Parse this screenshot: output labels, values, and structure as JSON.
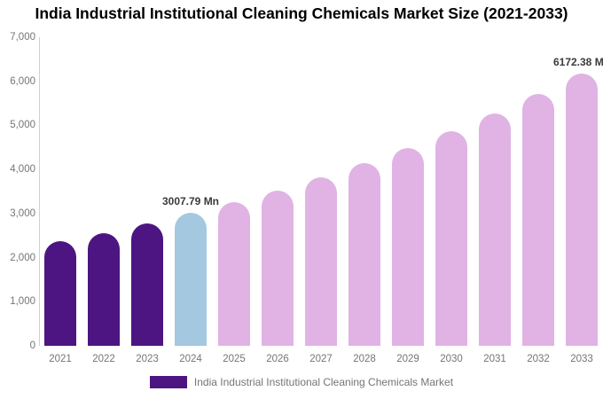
{
  "header": {
    "title": "India Industrial Institutional Cleaning Chemicals Market Size (2021-2033)"
  },
  "chart_data": {
    "type": "bar",
    "title": "India Industrial Institutional Cleaning Chemicals Market Size (2021-2033)",
    "categories": [
      "2021",
      "2022",
      "2023",
      "2024",
      "2025",
      "2026",
      "2027",
      "2028",
      "2029",
      "2030",
      "2031",
      "2032",
      "2033"
    ],
    "values": [
      2366,
      2563,
      2777,
      3007.79,
      3258,
      3530,
      3824,
      4142,
      4487,
      4860,
      5265,
      5703,
      6172.38
    ],
    "unit": "Mn",
    "bar_styles": [
      "historical",
      "historical",
      "historical",
      "current",
      "forecast",
      "forecast",
      "forecast",
      "forecast",
      "forecast",
      "forecast",
      "forecast",
      "forecast",
      "forecast"
    ],
    "colors": {
      "historical": "#4D1581",
      "current": "#A3C8DF",
      "forecast": "#E0B3E4"
    },
    "data_labels": [
      {
        "index": 3,
        "text": "3007.79 Mn"
      },
      {
        "index": 12,
        "text": "6172.38 Mn"
      }
    ],
    "ylim": [
      0,
      7000
    ],
    "y_ticks": [
      {
        "value": 0,
        "label": "0"
      },
      {
        "value": 1000,
        "label": "1,000"
      },
      {
        "value": 2000,
        "label": "2,000"
      },
      {
        "value": 3000,
        "label": "3,000"
      },
      {
        "value": 4000,
        "label": "4,000"
      },
      {
        "value": 5000,
        "label": "5,000"
      },
      {
        "value": 6000,
        "label": "6,000"
      },
      {
        "value": 7000,
        "label": "7,000"
      }
    ],
    "grid": false,
    "xlabel": "",
    "ylabel": "",
    "legend": {
      "label": "India Industrial Institutional Cleaning Chemicals Market",
      "color": "#4D1581",
      "position": "bottom"
    }
  }
}
